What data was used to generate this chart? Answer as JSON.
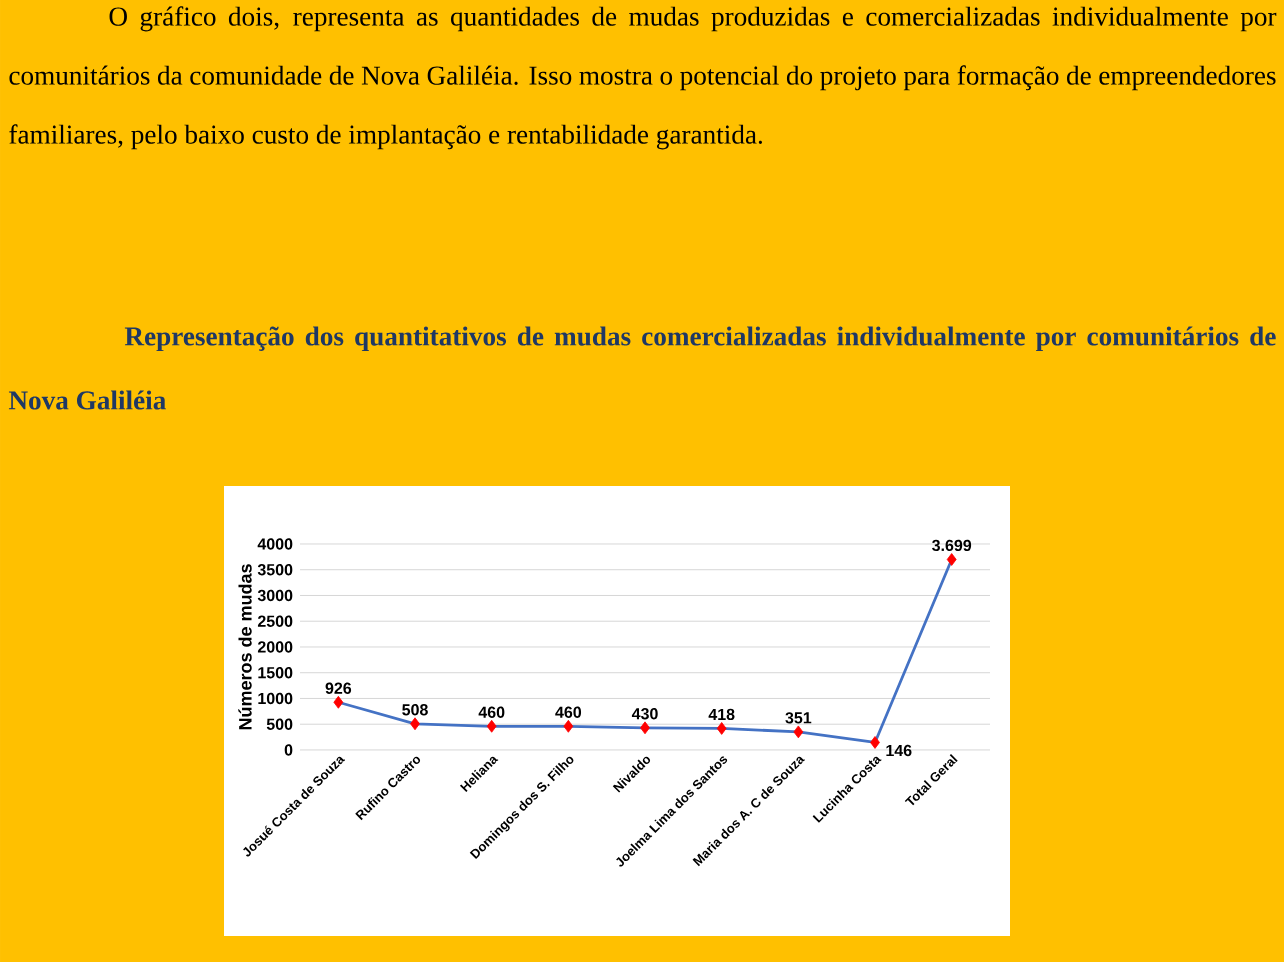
{
  "chart_data": {
    "type": "line",
    "title": "Representação dos quantitativos de mudas comercializadas individualmente por comunitários de Nova Galiléia",
    "annotations": [
      "O gráfico dois, representa as quantidades de mudas produzidas e comercializadas individualmente por comunitários da comunidade de Nova Galiléia. Isso mostra o potencial do projeto para formação de empreendedores familiares, pelo baixo custo de implantação e rentabilidade garantida."
    ],
    "ylabel": "Números de mudas",
    "categories": [
      "Josué Costa de Souza",
      "Rufino Castro",
      "Heliana",
      "Domingos dos S. Filho",
      "Nivaldo",
      "Joelma Lima dos Santos",
      "Maria dos A. C de Souza",
      "Lucinha Costa",
      "Total Geral"
    ],
    "values": [
      926,
      508,
      460,
      460,
      430,
      418,
      351,
      146,
      3699
    ],
    "value_labels": [
      "926",
      "508",
      "460",
      "460",
      "430",
      "418",
      "351",
      "146",
      "3.699"
    ],
    "color": "#4472c4",
    "colors": [
      "#ff0000",
      "#ff0000",
      "#ff0000",
      "#ff0000",
      "#ff0000",
      "#ff0000",
      "#ff0000",
      "#ff0000",
      "#ff0000"
    ],
    "marker": "diamond",
    "line_style": "solid",
    "ylim": [
      0,
      4000
    ],
    "yticks": [
      0,
      500,
      1000,
      1500,
      2000,
      2500,
      3000,
      3500,
      4000
    ],
    "grid": "y"
  }
}
